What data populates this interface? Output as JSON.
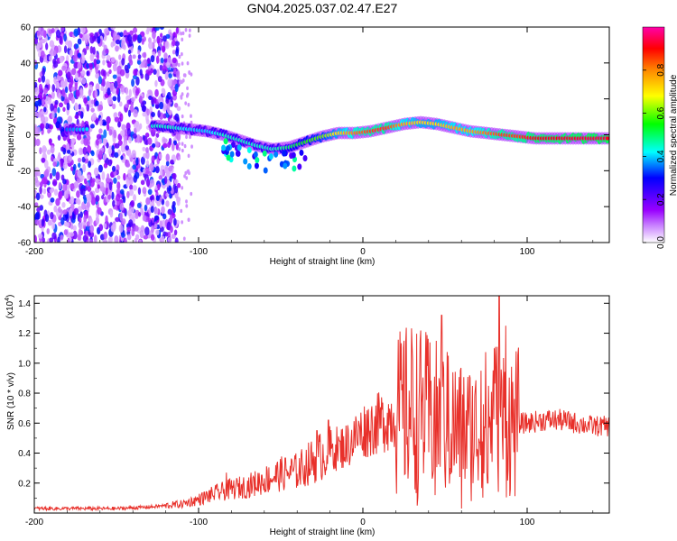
{
  "figure": {
    "title": "GN04.2025.037.02.47.E27"
  },
  "chart_data": [
    {
      "type": "heatmap",
      "name": "spectrogram",
      "xlabel": "Height of straight line (km)",
      "ylabel": "Frequency (Hz)",
      "xlim": [
        -200,
        150
      ],
      "ylim": [
        -60,
        60
      ],
      "xticks": [
        -200,
        -100,
        0,
        100
      ],
      "yticks": [
        -60,
        -40,
        -20,
        0,
        20,
        40,
        60
      ],
      "colorbar": {
        "label": "Normalized spectral amplitude",
        "range": [
          0,
          1
        ],
        "ticks": [
          "0.0",
          "0.2",
          "0.4",
          "0.6",
          "0.8"
        ],
        "tick_values": [
          0.0,
          0.2,
          0.4,
          0.6,
          0.8
        ],
        "colors": [
          "#ffffff",
          "#9900ff",
          "#0000ff",
          "#00ffff",
          "#00ff00",
          "#ffff00",
          "#ff8800",
          "#ff0000",
          "#ff00aa"
        ]
      },
      "noise_region_x": [
        -200,
        -112
      ],
      "ridge": {
        "x": [
          -180,
          -170,
          -125,
          -115,
          -105,
          -95,
          -85,
          -75,
          -65,
          -55,
          -45,
          -35,
          -25,
          -15,
          -5,
          5,
          15,
          25,
          35,
          45,
          55,
          65,
          75,
          85,
          95,
          105,
          120,
          135,
          150
        ],
        "y": [
          3,
          3,
          5,
          4,
          3,
          2,
          0,
          -3,
          -6,
          -8,
          -7,
          -4,
          -1,
          1,
          1,
          2,
          4,
          6,
          7,
          6,
          4,
          2,
          1,
          0,
          -1,
          -2,
          -2,
          -2,
          -2
        ],
        "amplitude": [
          0.35,
          0.4,
          0.45,
          0.45,
          0.4,
          0.4,
          0.45,
          0.45,
          0.45,
          0.45,
          0.5,
          0.55,
          0.6,
          0.7,
          0.8,
          0.85,
          0.85,
          0.75,
          0.7,
          0.7,
          0.75,
          0.75,
          0.8,
          0.85,
          0.85,
          0.9,
          0.9,
          0.92,
          0.92
        ]
      }
    },
    {
      "type": "line",
      "name": "snr",
      "xlabel": "Height of straight line (km)",
      "ylabel": "SNR (10 * v/v)",
      "y_multiplier": "(x10",
      "y_multiplier_exp": "4",
      "y_multiplier_close": ")",
      "xlim": [
        -200,
        150
      ],
      "ylim": [
        0,
        1.45
      ],
      "xticks": [
        -200,
        -100,
        0,
        100
      ],
      "yticks": [
        0.2,
        0.4,
        0.6,
        0.8,
        1.0,
        1.2,
        1.4
      ],
      "ytick_labels": [
        "0.2",
        "0.4",
        "0.6",
        "0.8",
        "1.0",
        "1.2",
        "1.4"
      ],
      "color": "#e8302a",
      "envelope_x": [
        -200,
        -150,
        -130,
        -110,
        -100,
        -90,
        -80,
        -70,
        -60,
        -50,
        -40,
        -30,
        -20,
        -10,
        0,
        10,
        20,
        30,
        40,
        50,
        60,
        70,
        80,
        90,
        100,
        110,
        120,
        130,
        140,
        150
      ],
      "envelope_y": [
        0.03,
        0.03,
        0.04,
        0.06,
        0.09,
        0.13,
        0.16,
        0.18,
        0.22,
        0.26,
        0.28,
        0.35,
        0.42,
        0.45,
        0.55,
        0.6,
        0.65,
        0.7,
        0.65,
        0.6,
        0.55,
        0.55,
        0.65,
        0.6,
        0.6,
        0.62,
        0.62,
        0.6,
        0.58,
        0.58
      ],
      "peaks": [
        {
          "x": -83,
          "y": 0.27
        },
        {
          "x": -28,
          "y": 0.55
        },
        {
          "x": -21,
          "y": 0.62
        },
        {
          "x": -14,
          "y": 0.48
        },
        {
          "x": 10,
          "y": 0.73
        },
        {
          "x": 25,
          "y": 1.15
        },
        {
          "x": 30,
          "y": 1.12
        },
        {
          "x": 38,
          "y": 0.98
        },
        {
          "x": 48,
          "y": 1.32
        },
        {
          "x": 52,
          "y": 1.05
        },
        {
          "x": 72,
          "y": 0.95
        },
        {
          "x": 80,
          "y": 1.1
        },
        {
          "x": 83,
          "y": 1.45
        },
        {
          "x": 87,
          "y": 1.25
        }
      ],
      "troughs": [
        {
          "x": 33,
          "y": 0.05
        },
        {
          "x": 44,
          "y": 0.12
        },
        {
          "x": 60,
          "y": 0.03
        },
        {
          "x": 66,
          "y": 0.08
        },
        {
          "x": 76,
          "y": 0.2
        }
      ]
    }
  ]
}
